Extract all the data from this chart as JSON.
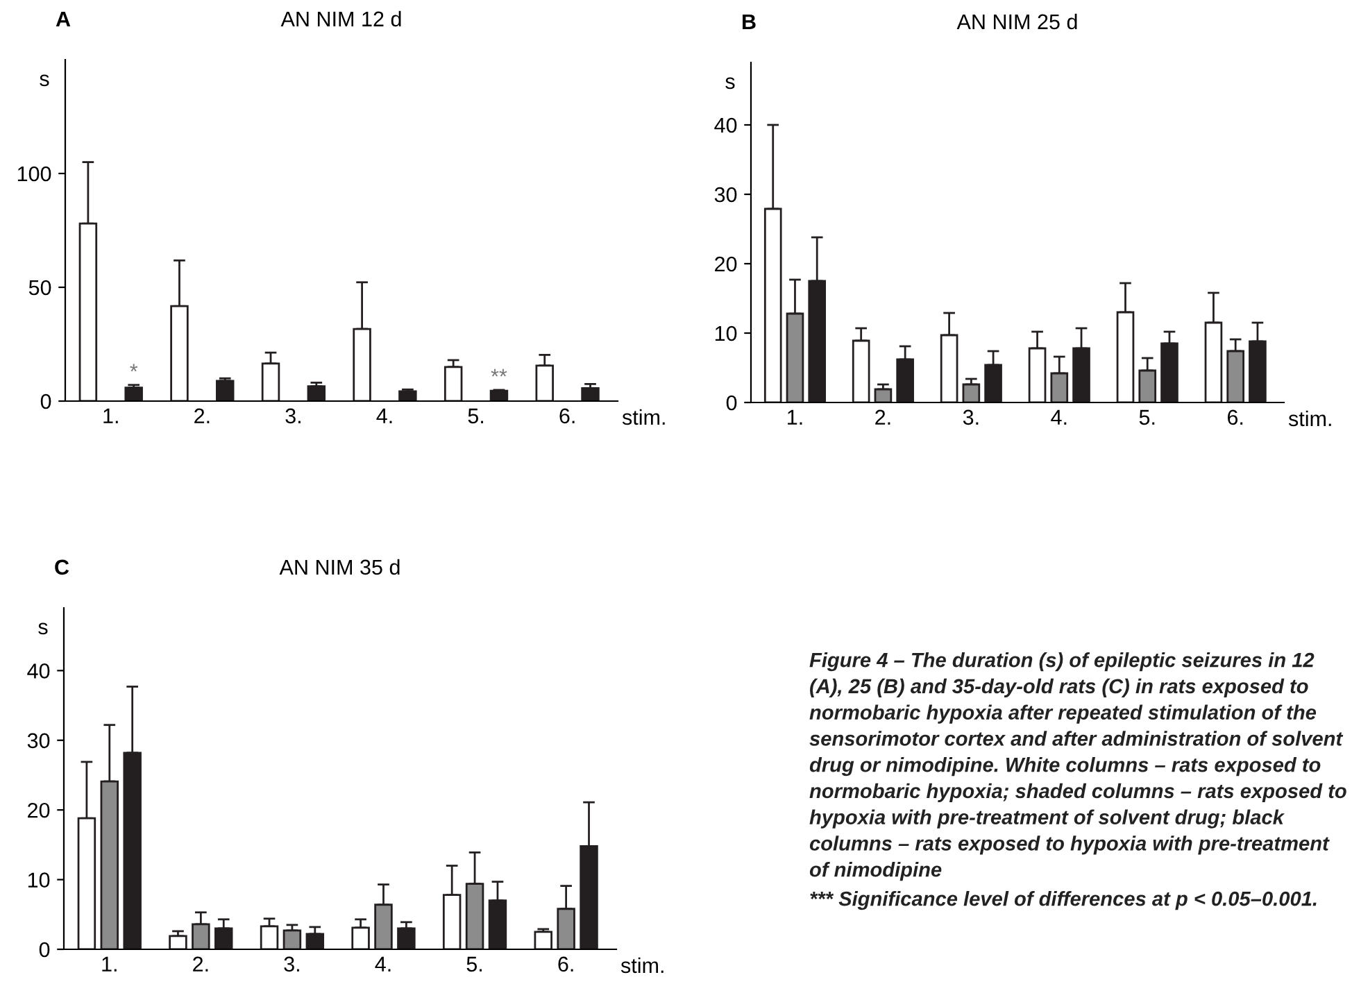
{
  "chart_data": [
    {
      "type": "bar",
      "title": "AN NIM 12 d",
      "xlabel": "stim.",
      "ylabel": "s",
      "categories": [
        "1.",
        "2.",
        "3.",
        "4.",
        "5.",
        "6."
      ],
      "ylim": [
        0,
        150
      ],
      "yticks": [
        0,
        50,
        100
      ],
      "grid": false,
      "legend": false,
      "series": [
        {
          "color": "#ffffff",
          "values": [
            78,
            41.7,
            16.5,
            31.7,
            15,
            15.6
          ],
          "errors": [
            [
              78,
              105
            ],
            [
              41.7,
              61.8
            ],
            [
              16.5,
              21.3
            ],
            [
              31.7,
              52.2
            ],
            [
              15,
              18
            ],
            [
              15.6,
              20.3
            ]
          ]
        },
        {
          "color": "#231f20",
          "values": [
            5.9,
            8.9,
            6.5,
            4.3,
            4.5,
            5.7
          ],
          "errors": [
            [
              5.9,
              7.1
            ],
            [
              8.9,
              10
            ],
            [
              6.5,
              8.1
            ],
            [
              4.3,
              5.1
            ],
            [
              4.5,
              4.9
            ],
            [
              5.7,
              7.5
            ]
          ]
        }
      ],
      "annotations": [
        "A",
        "*",
        "**"
      ]
    },
    {
      "type": "bar",
      "title": "AN NIM 25 d",
      "xlabel": "stim.",
      "ylabel": "s",
      "categories": [
        "1.",
        "2.",
        "3.",
        "4.",
        "5.",
        "6."
      ],
      "ylim": [
        0,
        49
      ],
      "yticks": [
        0,
        10,
        20,
        30,
        40
      ],
      "grid": false,
      "legend": false,
      "series": [
        {
          "color": "#ffffff",
          "values": [
            27.9,
            8.9,
            9.7,
            7.8,
            13,
            11.5
          ],
          "errors": [
            [
              27.9,
              40
            ],
            [
              8.9,
              10.7
            ],
            [
              9.7,
              12.9
            ],
            [
              7.8,
              10.2
            ],
            [
              13,
              17.2
            ],
            [
              11.5,
              15.8
            ]
          ]
        },
        {
          "color": "#8c8c8c",
          "values": [
            12.8,
            1.9,
            2.6,
            4.2,
            4.6,
            7.4
          ],
          "errors": [
            [
              12.8,
              17.7
            ],
            [
              1.9,
              2.6
            ],
            [
              2.6,
              3.4
            ],
            [
              4.2,
              6.6
            ],
            [
              4.6,
              6.4
            ],
            [
              7.4,
              9.1
            ]
          ]
        },
        {
          "color": "#231f20",
          "values": [
            17.5,
            6.2,
            5.4,
            7.8,
            8.5,
            8.8
          ],
          "errors": [
            [
              17.5,
              23.8
            ],
            [
              6.2,
              8.1
            ],
            [
              5.4,
              7.4
            ],
            [
              7.8,
              10.7
            ],
            [
              8.5,
              10.2
            ],
            [
              8.8,
              11.5
            ]
          ]
        }
      ],
      "annotations": [
        "B"
      ]
    },
    {
      "type": "bar",
      "title": "AN NIM 35 d",
      "xlabel": "stim.",
      "ylabel": "s",
      "categories": [
        "1.",
        "2.",
        "3.",
        "4.",
        "5.",
        "6."
      ],
      "ylim": [
        0,
        49
      ],
      "yticks": [
        0,
        10,
        20,
        30,
        40
      ],
      "grid": false,
      "legend": false,
      "series": [
        {
          "color": "#ffffff",
          "values": [
            18.8,
            1.9,
            3.3,
            3.1,
            7.8,
            2.5
          ],
          "errors": [
            [
              18.8,
              26.9
            ],
            [
              1.9,
              2.6
            ],
            [
              3.3,
              4.4
            ],
            [
              3.1,
              4.3
            ],
            [
              7.8,
              12
            ],
            [
              2.5,
              2.9
            ]
          ]
        },
        {
          "color": "#8c8c8c",
          "values": [
            24.1,
            3.6,
            2.7,
            6.4,
            9.4,
            5.8
          ],
          "errors": [
            [
              24.1,
              32.2
            ],
            [
              3.6,
              5.3
            ],
            [
              2.7,
              3.5
            ],
            [
              6.4,
              9.3
            ],
            [
              9.4,
              13.9
            ],
            [
              5.8,
              9.1
            ]
          ]
        },
        {
          "color": "#231f20",
          "values": [
            28.2,
            3,
            2.2,
            3,
            7,
            14.8
          ],
          "errors": [
            [
              28.2,
              37.7
            ],
            [
              3,
              4.3
            ],
            [
              2.2,
              3.2
            ],
            [
              3,
              3.9
            ],
            [
              7,
              9.7
            ],
            [
              14.8,
              21.1
            ]
          ]
        }
      ],
      "annotations": [
        "C",
        "Figure 4 – The duration (s) of epileptic seizures in 12 (A), 25 (B) and 35-day-old rats (C) in rats exposed to normobaric hypoxia after repeated stimulation of the sensorimotor cortex and after administration of solvent drug or nimodipine. White columns – rats exposed to normobaric hypoxia; shaded columns – rats exposed to hypoxia with pre-treatment of solvent drug; black columns – rats exposed to hypoxia with pre-treatment of nimodipine",
        "*** Significance level of differences at p < 0.05–0.001."
      ]
    }
  ]
}
